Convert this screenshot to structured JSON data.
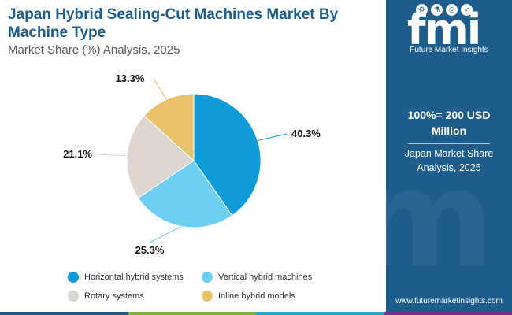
{
  "header": {
    "title": "Japan Hybrid Sealing-Cut Machines Market By Machine Type",
    "subtitle": "Market Share (%) Analysis, 2025"
  },
  "chart_data": {
    "type": "pie",
    "title": "Japan Hybrid Sealing-Cut Machines Market By Machine Type",
    "subtitle": "Market Share (%) Analysis, 2025",
    "unit": "%",
    "slices": [
      {
        "label": "Horizontal hybrid systems",
        "value": 40.3,
        "display": "40.3%",
        "color": "#0f9bd7"
      },
      {
        "label": "Vertical hybrid machines",
        "value": 25.3,
        "display": "25.3%",
        "color": "#6dcef2"
      },
      {
        "label": "Rotary systems",
        "value": 21.1,
        "display": "21.1%",
        "color": "#ddd6d0"
      },
      {
        "label": "Inline hybrid models",
        "value": 13.3,
        "display": "13.3%",
        "color": "#e8c36a"
      }
    ],
    "legend_position": "bottom"
  },
  "sidebar": {
    "logo_text": "fmi",
    "logo_subtitle": "Future Market Insights",
    "total_label": "100%= 200 USD Million",
    "market_label": "Japan Market Share Analysis, 2025",
    "url": "www.futuremarketinsights.com",
    "background": "#1e5c8c"
  },
  "bottom_bar_colors": [
    "#1e5c8c",
    "#7ab530",
    "#1e9fd6",
    "#7a2e8c"
  ]
}
